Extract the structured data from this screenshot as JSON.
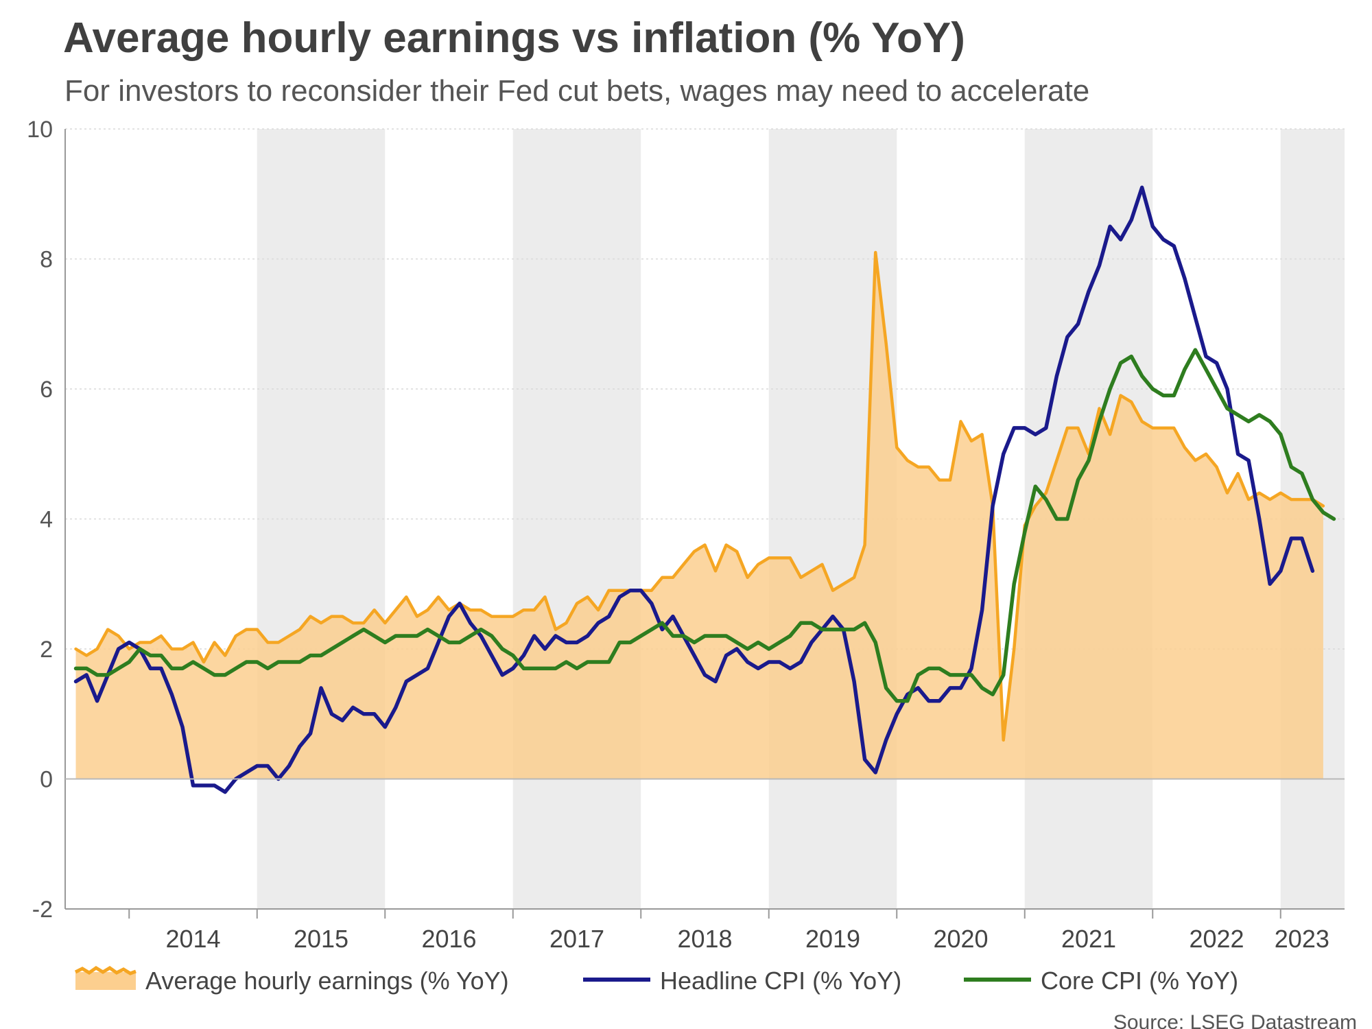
{
  "title": "Average hourly earnings vs inflation (% YoY)",
  "subtitle": "For investors to reconsider their Fed cut bets, wages may need to accelerate",
  "source": "Source: LSEG Datastream",
  "colors": {
    "earnings_line": "#f5a623",
    "earnings_fill": "#fccf8f",
    "headline_cpi": "#1a1a8c",
    "core_cpi": "#2e7d1f",
    "year_band": "#ececec"
  },
  "chart_data": {
    "type": "line",
    "x_start": "2013-07",
    "x_end": "2023-07",
    "ylim": [
      -2,
      10
    ],
    "y_ticks": [
      "-2",
      "0",
      "2",
      "4",
      "6",
      "8",
      "10"
    ],
    "x_tick_labels": [
      "2014",
      "2015",
      "2016",
      "2017",
      "2018",
      "2019",
      "2020",
      "2021",
      "2022",
      "2023"
    ],
    "grid": true,
    "legend_position": "bottom",
    "shaded_years": [
      "2015",
      "2017",
      "2019",
      "2021",
      "2023"
    ],
    "series": [
      {
        "name": "Average hourly earnings (% YoY)",
        "style": "area",
        "start": "2013-08",
        "values": [
          2.0,
          1.9,
          2.0,
          2.3,
          2.2,
          2.0,
          2.1,
          2.1,
          2.2,
          2.0,
          2.0,
          2.1,
          1.8,
          2.1,
          1.9,
          2.2,
          2.3,
          2.3,
          2.1,
          2.1,
          2.2,
          2.3,
          2.5,
          2.4,
          2.5,
          2.5,
          2.4,
          2.4,
          2.6,
          2.4,
          2.6,
          2.8,
          2.5,
          2.6,
          2.8,
          2.6,
          2.7,
          2.6,
          2.6,
          2.5,
          2.5,
          2.5,
          2.6,
          2.6,
          2.8,
          2.3,
          2.4,
          2.7,
          2.8,
          2.6,
          2.9,
          2.9,
          2.9,
          2.9,
          2.9,
          3.1,
          3.1,
          3.3,
          3.5,
          3.6,
          3.2,
          3.6,
          3.5,
          3.1,
          3.3,
          3.4,
          3.4,
          3.4,
          3.1,
          3.2,
          3.3,
          2.9,
          3.0,
          3.1,
          3.6,
          8.1,
          6.7,
          5.1,
          4.9,
          4.8,
          4.8,
          4.6,
          4.6,
          5.5,
          5.2,
          5.3,
          4.2,
          0.6,
          2.0,
          3.9,
          4.2,
          4.4,
          4.9,
          5.4,
          5.4,
          5.0,
          5.7,
          5.3,
          5.9,
          5.8,
          5.5,
          5.4,
          5.4,
          5.4,
          5.1,
          4.9,
          5.0,
          4.8,
          4.4,
          4.7,
          4.3,
          4.4,
          4.3,
          4.4,
          4.3,
          4.3,
          4.3,
          4.2
        ]
      },
      {
        "name": "Headline CPI (% YoY)",
        "style": "line",
        "start": "2013-08",
        "values": [
          1.5,
          1.6,
          1.2,
          1.6,
          2.0,
          2.1,
          2.0,
          1.7,
          1.7,
          1.3,
          0.8,
          -0.1,
          -0.1,
          -0.1,
          -0.2,
          0.0,
          0.1,
          0.2,
          0.2,
          0.0,
          0.2,
          0.5,
          0.7,
          1.4,
          1.0,
          0.9,
          1.1,
          1.0,
          1.0,
          0.8,
          1.1,
          1.5,
          1.6,
          1.7,
          2.1,
          2.5,
          2.7,
          2.4,
          2.2,
          1.9,
          1.6,
          1.7,
          1.9,
          2.2,
          2.0,
          2.2,
          2.1,
          2.1,
          2.2,
          2.4,
          2.5,
          2.8,
          2.9,
          2.9,
          2.7,
          2.3,
          2.5,
          2.2,
          1.9,
          1.6,
          1.5,
          1.9,
          2.0,
          1.8,
          1.7,
          1.8,
          1.8,
          1.7,
          1.8,
          2.1,
          2.3,
          2.5,
          2.3,
          1.5,
          0.3,
          0.1,
          0.6,
          1.0,
          1.3,
          1.4,
          1.2,
          1.2,
          1.4,
          1.4,
          1.7,
          2.6,
          4.2,
          5.0,
          5.4,
          5.4,
          5.3,
          5.4,
          6.2,
          6.8,
          7.0,
          7.5,
          7.9,
          8.5,
          8.3,
          8.6,
          9.1,
          8.5,
          8.3,
          8.2,
          7.7,
          7.1,
          6.5,
          6.4,
          6.0,
          5.0,
          4.9,
          4.0,
          3.0,
          3.2,
          3.7,
          3.7,
          3.2
        ]
      },
      {
        "name": "Core CPI (% YoY)",
        "style": "line",
        "start": "2013-08",
        "values": [
          1.7,
          1.7,
          1.6,
          1.6,
          1.7,
          1.8,
          2.0,
          1.9,
          1.9,
          1.7,
          1.7,
          1.8,
          1.7,
          1.6,
          1.6,
          1.7,
          1.8,
          1.8,
          1.7,
          1.8,
          1.8,
          1.8,
          1.9,
          1.9,
          2.0,
          2.1,
          2.2,
          2.3,
          2.2,
          2.1,
          2.2,
          2.2,
          2.2,
          2.3,
          2.2,
          2.1,
          2.1,
          2.2,
          2.3,
          2.2,
          2.0,
          1.9,
          1.7,
          1.7,
          1.7,
          1.7,
          1.8,
          1.7,
          1.8,
          1.8,
          1.8,
          2.1,
          2.1,
          2.2,
          2.3,
          2.4,
          2.2,
          2.2,
          2.1,
          2.2,
          2.2,
          2.2,
          2.1,
          2.0,
          2.1,
          2.0,
          2.1,
          2.2,
          2.4,
          2.4,
          2.3,
          2.3,
          2.3,
          2.3,
          2.4,
          2.1,
          1.4,
          1.2,
          1.2,
          1.6,
          1.7,
          1.7,
          1.6,
          1.6,
          1.6,
          1.4,
          1.3,
          1.6,
          3.0,
          3.8,
          4.5,
          4.3,
          4.0,
          4.0,
          4.6,
          4.9,
          5.5,
          6.0,
          6.4,
          6.5,
          6.2,
          6.0,
          5.9,
          5.9,
          6.3,
          6.6,
          6.3,
          6.0,
          5.7,
          5.6,
          5.5,
          5.6,
          5.5,
          5.3,
          4.8,
          4.7,
          4.3,
          4.1,
          4.0
        ]
      }
    ]
  }
}
